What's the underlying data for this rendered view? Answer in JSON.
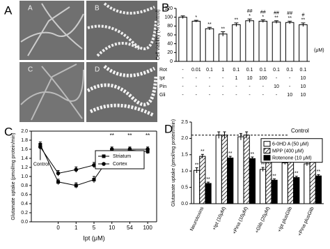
{
  "figure": {
    "panel_labels": [
      "A",
      "B",
      "C",
      "D"
    ],
    "micrograph_labels": [
      "A",
      "B",
      "C",
      "D"
    ]
  },
  "chart_data": [
    {
      "type": "bar",
      "y_label": "Cell viability (% control)",
      "values": [
        100,
        91,
        74,
        62,
        83,
        92,
        91,
        89,
        88,
        83
      ],
      "errors": [
        3,
        2,
        3,
        5,
        4,
        4,
        3,
        3,
        3,
        4
      ],
      "color": "#ffffff",
      "ylim": [
        0,
        120
      ],
      "yticks": [
        0,
        20,
        40,
        60,
        80,
        100,
        120
      ],
      "sig_vs_control": [
        null,
        "*",
        "**",
        "**",
        "**",
        "*",
        "*",
        "**",
        "**",
        "**"
      ],
      "sig_vs_rot": [
        null,
        null,
        null,
        null,
        null,
        "##",
        "##",
        "##",
        "##",
        "#"
      ],
      "unit": "(μM)",
      "treatments": [
        {
          "name": "Rot",
          "values": [
            "-",
            "0.01",
            "0.1",
            "1",
            "0.1",
            "0.1",
            "0.1",
            "0.1",
            "0.1",
            "0.1"
          ]
        },
        {
          "name": "Ipt",
          "values": [
            "-",
            "-",
            "-",
            "-",
            "1",
            "10",
            "100",
            "-",
            "-",
            "10"
          ]
        },
        {
          "name": "Pin",
          "values": [
            "-",
            "-",
            "-",
            "-",
            "-",
            "-",
            "-",
            "10",
            "-",
            "10"
          ]
        },
        {
          "name": "Gli",
          "values": [
            "-",
            "-",
            "-",
            "-",
            "-",
            "-",
            "-",
            "-",
            "10",
            "10"
          ]
        }
      ]
    },
    {
      "type": "line",
      "x_label": "Ipt (μM)",
      "y_label": "Glutamate uptake (pmol/mg protein/min)",
      "categories": [
        null,
        "0",
        "1",
        "5",
        "10",
        "54",
        "100"
      ],
      "series": [
        {
          "name": "Striatum",
          "marker": "square",
          "color": "#000000",
          "values": [
            1.7,
            0.88,
            0.8,
            0.93,
            1.5,
            1.58,
            1.55
          ],
          "errors": [
            0.06,
            0.06,
            0.06,
            0.07,
            0.06,
            0.05,
            0.05
          ]
        },
        {
          "name": "Cortex",
          "marker": "circle",
          "color": "#000000",
          "values": [
            1.65,
            1.07,
            1.15,
            1.25,
            1.6,
            1.6,
            1.6
          ],
          "errors": [
            0.06,
            0.06,
            0.06,
            0.06,
            0.05,
            0.05,
            0.05
          ]
        }
      ],
      "annotations": [
        null,
        null,
        null,
        null,
        "**",
        "**",
        "**"
      ],
      "control_label": "Control",
      "legend": "center",
      "ylim": [
        0,
        2
      ],
      "yticks": [
        {
          "value": 0,
          "label": "0.0"
        },
        {
          "value": 0.2,
          "label": "0.2"
        },
        {
          "value": 0.4,
          "label": "0.4"
        },
        {
          "value": 0.6,
          "label": "0.6"
        },
        {
          "value": 0.8,
          "label": "0.8"
        },
        {
          "value": 1,
          "label": "1.0"
        },
        {
          "value": 1.2,
          "label": "1.2"
        },
        {
          "value": 1.4,
          "label": "1.4"
        },
        {
          "value": 1.6,
          "label": "1.6"
        },
        {
          "value": 1.8,
          "label": "1.8"
        },
        {
          "value": 2,
          "label": "2.0"
        }
      ]
    },
    {
      "type": "bar",
      "y_label": "Glutamate uptake (pmol/mg protein/min)",
      "categories": [
        "Neurotoxins",
        "+Ipt (10μM)",
        "+Pina (10μM)",
        "+Glib (20μM)",
        "+Ipt plusGlib",
        "+Pina plusGlib"
      ],
      "series": [
        {
          "name": "6-0HD A (50 μM)",
          "color": "#ffffff",
          "hatch": false,
          "values": [
            1.02,
            2.1,
            2.05,
            1.05,
            1.25,
            1.22
          ],
          "errors": [
            0.08,
            0.1,
            0.1,
            0.06,
            0.05,
            0.06
          ],
          "annotations": [
            "**",
            null,
            null,
            "**",
            "**",
            "**"
          ]
        },
        {
          "name": "MPP (400 μM)",
          "color": "#ffffff",
          "hatch": true,
          "values": [
            1.45,
            2.1,
            2.1,
            1.28,
            1.45,
            1.5
          ],
          "errors": [
            0.06,
            0.1,
            0.1,
            0.06,
            0.06,
            0.06
          ],
          "annotations": [
            "**",
            null,
            null,
            "**",
            "**",
            "**"
          ]
        },
        {
          "name": "Rotenone (10 μM)",
          "color": "#000000",
          "hatch": false,
          "values": [
            0.62,
            1.4,
            1.38,
            0.72,
            0.8,
            0.85
          ],
          "errors": [
            0.04,
            0.05,
            0.05,
            0.04,
            0.04,
            0.04
          ],
          "annotations": [
            "**",
            "**",
            "**",
            "**",
            "**",
            "**"
          ]
        }
      ],
      "reference_line": {
        "value": 2.1,
        "label": "Control"
      },
      "legend": "upper right",
      "ylim": [
        0,
        2.5
      ],
      "yticks": [
        {
          "value": 0,
          "label": "0.0"
        },
        {
          "value": 0.5,
          "label": "0.5"
        },
        {
          "value": 1,
          "label": "1.0"
        },
        {
          "value": 1.5,
          "label": "1.5"
        },
        {
          "value": 2,
          "label": "2.0"
        },
        {
          "value": 2.5,
          "label": "2.5"
        }
      ]
    }
  ]
}
